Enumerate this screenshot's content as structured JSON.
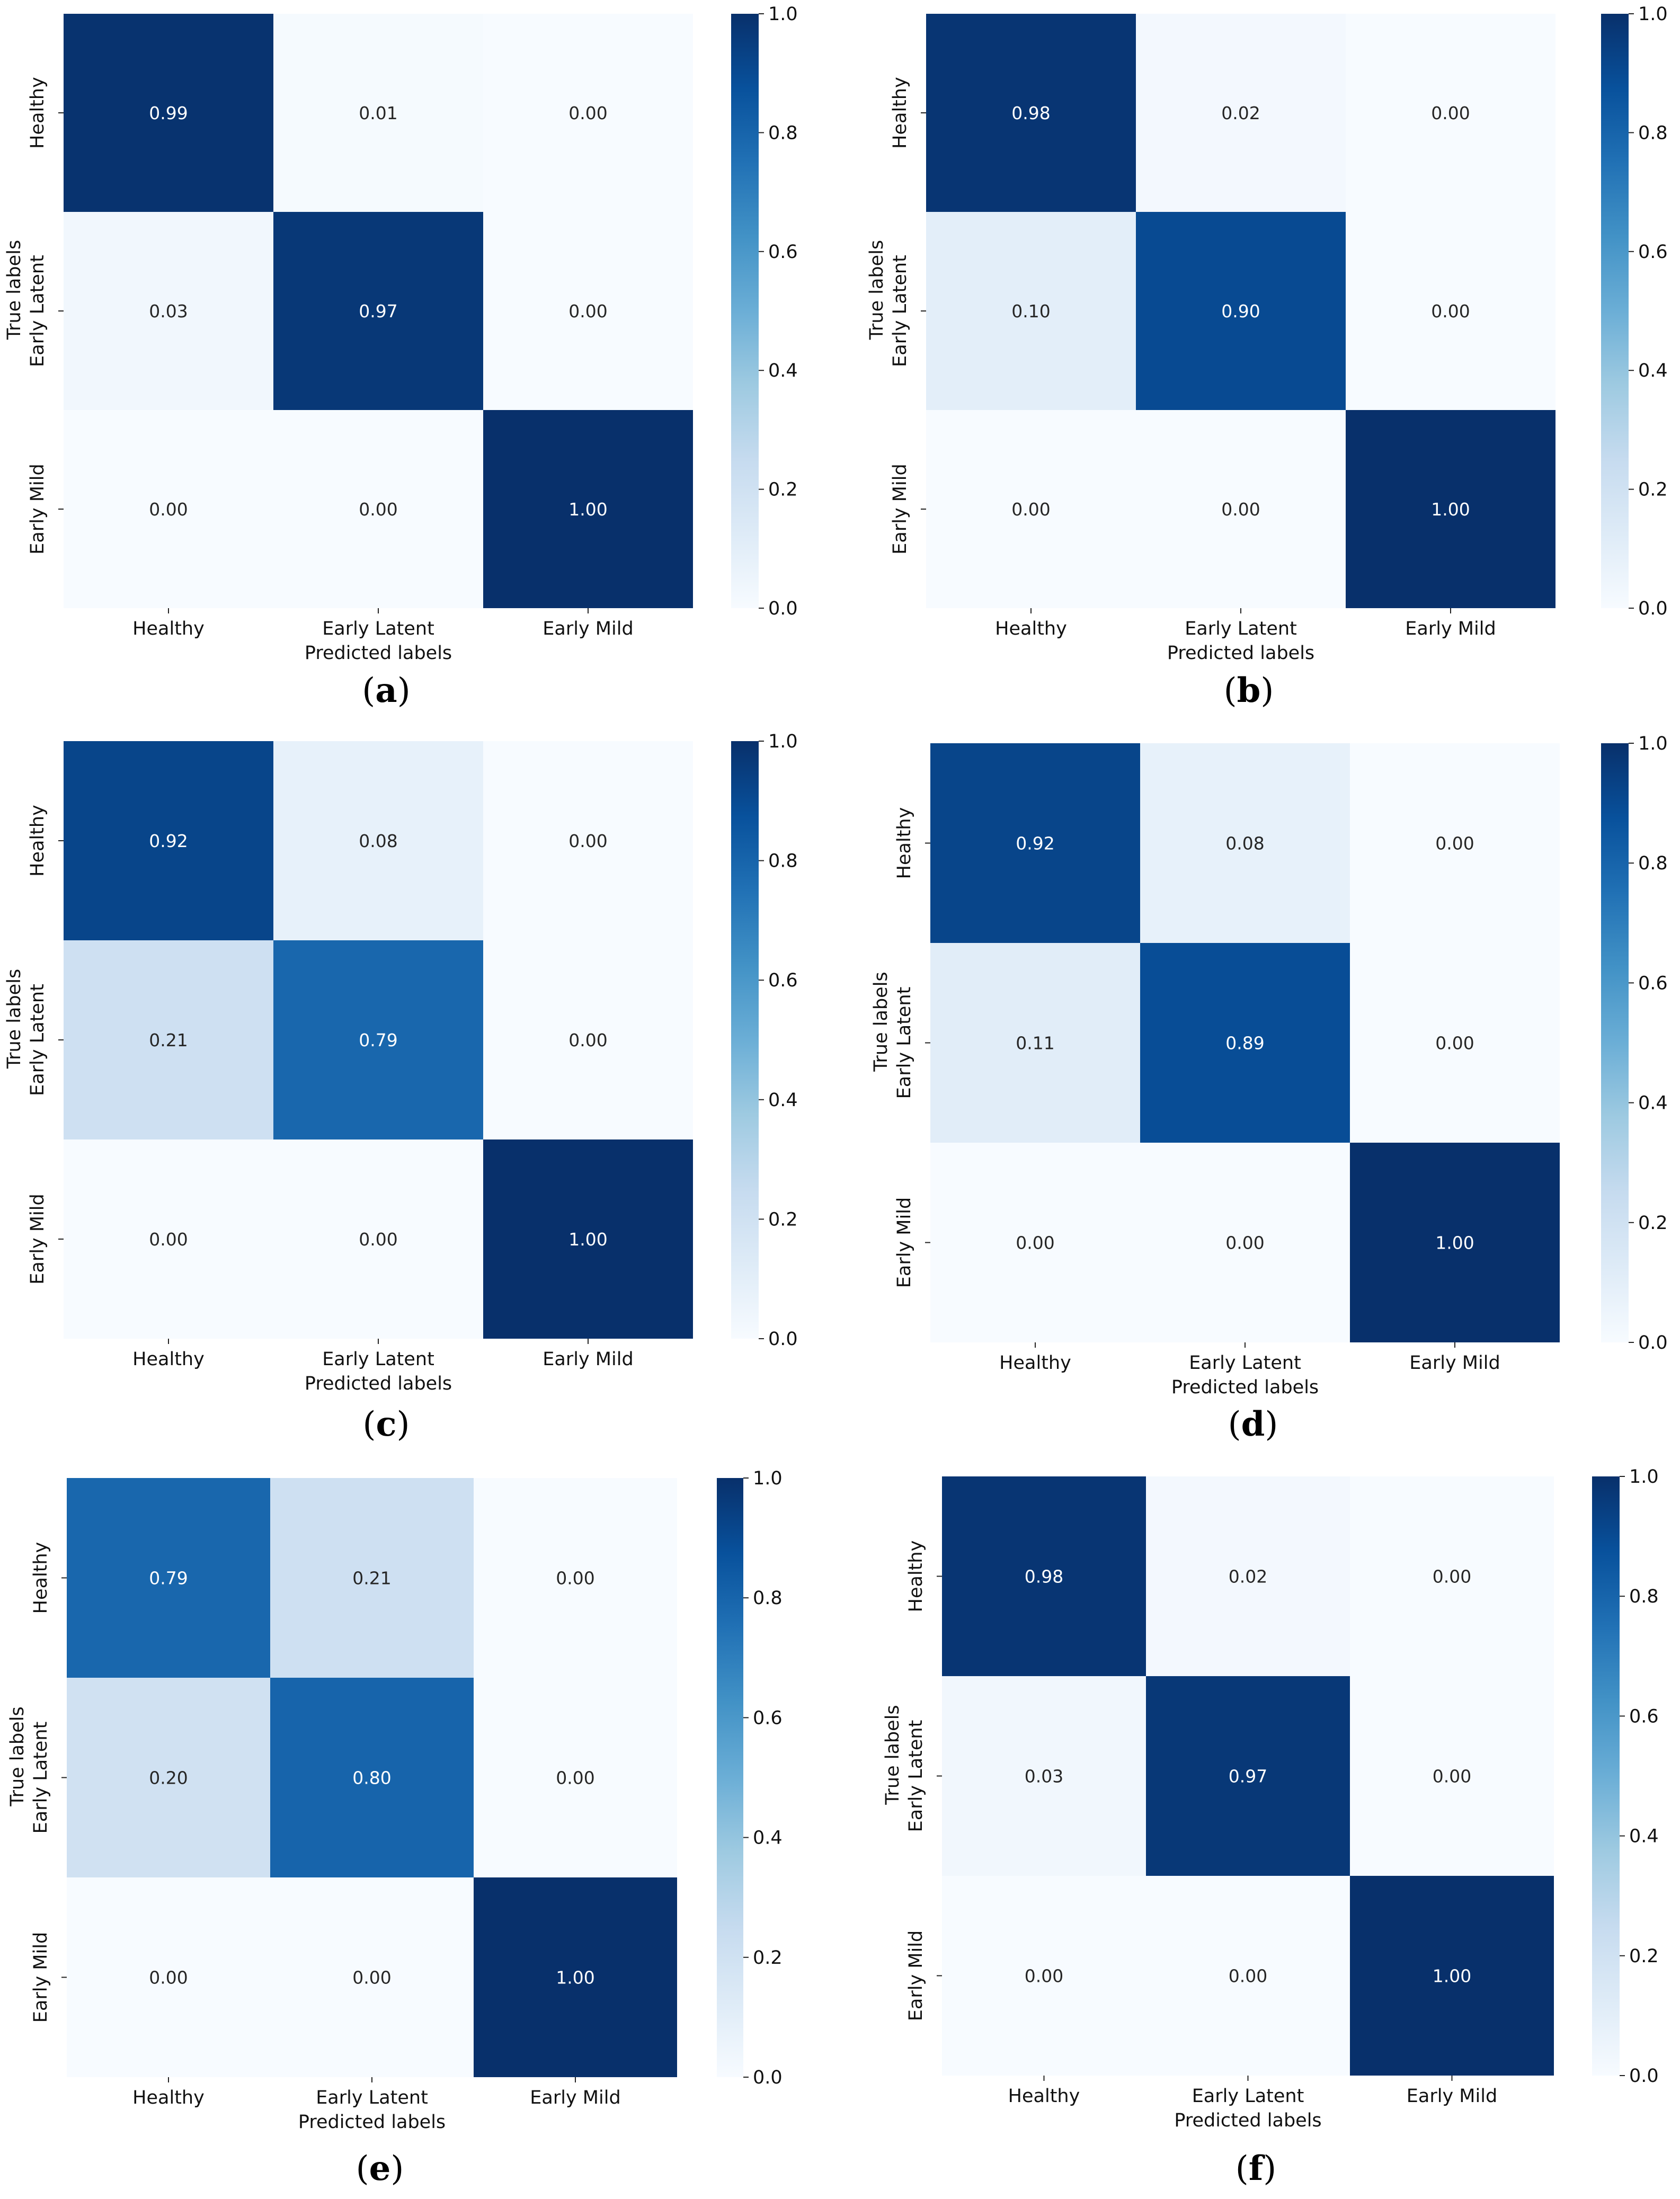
{
  "figure": {
    "colormap": [
      "#f7fbff",
      "#deebf7",
      "#c6dbef",
      "#9ecae1",
      "#6baed6",
      "#4292c6",
      "#2171b5",
      "#08519c",
      "#08306b"
    ],
    "text_light": "#ffffff",
    "text_dark": "#262626"
  },
  "chart_data": [
    {
      "type": "heatmap",
      "panel": "(a)",
      "panel_letter": "a",
      "xlabel": "Predicted labels",
      "ylabel": "True labels",
      "x_categories": [
        "Healthy",
        "Early Latent",
        "Early Mild"
      ],
      "y_categories": [
        "Healthy",
        "Early Latent",
        "Early Mild"
      ],
      "values": [
        [
          0.99,
          0.01,
          0.0
        ],
        [
          0.03,
          0.97,
          0.0
        ],
        [
          0.0,
          0.0,
          1.0
        ]
      ],
      "colorbar": {
        "min": 0.0,
        "max": 1.0,
        "ticks": [
          "0.0",
          "0.2",
          "0.4",
          "0.6",
          "0.8",
          "1.0"
        ]
      }
    },
    {
      "type": "heatmap",
      "panel": "(b)",
      "panel_letter": "b",
      "xlabel": "Predicted labels",
      "ylabel": "True labels",
      "x_categories": [
        "Healthy",
        "Early Latent",
        "Early Mild"
      ],
      "y_categories": [
        "Healthy",
        "Early Latent",
        "Early Mild"
      ],
      "values": [
        [
          0.98,
          0.02,
          0.0
        ],
        [
          0.1,
          0.9,
          0.0
        ],
        [
          0.0,
          0.0,
          1.0
        ]
      ],
      "colorbar": {
        "min": 0.0,
        "max": 1.0,
        "ticks": [
          "0.0",
          "0.2",
          "0.4",
          "0.6",
          "0.8",
          "1.0"
        ]
      }
    },
    {
      "type": "heatmap",
      "panel": "(c)",
      "panel_letter": "c",
      "xlabel": "Predicted labels",
      "ylabel": "True labels",
      "x_categories": [
        "Healthy",
        "Early Latent",
        "Early Mild"
      ],
      "y_categories": [
        "Healthy",
        "Early Latent",
        "Early Mild"
      ],
      "values": [
        [
          0.92,
          0.08,
          0.0
        ],
        [
          0.21,
          0.79,
          0.0
        ],
        [
          0.0,
          0.0,
          1.0
        ]
      ],
      "colorbar": {
        "min": 0.0,
        "max": 1.0,
        "ticks": [
          "0.0",
          "0.2",
          "0.4",
          "0.6",
          "0.8",
          "1.0"
        ]
      }
    },
    {
      "type": "heatmap",
      "panel": "(d)",
      "panel_letter": "d",
      "xlabel": "Predicted labels",
      "ylabel": "True labels",
      "x_categories": [
        "Healthy",
        "Early Latent",
        "Early Mild"
      ],
      "y_categories": [
        "Healthy",
        "Early Latent",
        "Early Mild"
      ],
      "values": [
        [
          0.92,
          0.08,
          0.0
        ],
        [
          0.11,
          0.89,
          0.0
        ],
        [
          0.0,
          0.0,
          1.0
        ]
      ],
      "colorbar": {
        "min": 0.0,
        "max": 1.0,
        "ticks": [
          "0.0",
          "0.2",
          "0.4",
          "0.6",
          "0.8",
          "1.0"
        ]
      }
    },
    {
      "type": "heatmap",
      "panel": "(e)",
      "panel_letter": "e",
      "xlabel": "Predicted labels",
      "ylabel": "True labels",
      "x_categories": [
        "Healthy",
        "Early Latent",
        "Early Mild"
      ],
      "y_categories": [
        "Healthy",
        "Early Latent",
        "Early Mild"
      ],
      "values": [
        [
          0.79,
          0.21,
          0.0
        ],
        [
          0.2,
          0.8,
          0.0
        ],
        [
          0.0,
          0.0,
          1.0
        ]
      ],
      "colorbar": {
        "min": 0.0,
        "max": 1.0,
        "ticks": [
          "0.0",
          "0.2",
          "0.4",
          "0.6",
          "0.8",
          "1.0"
        ]
      }
    },
    {
      "type": "heatmap",
      "panel": "(f)",
      "panel_letter": "f",
      "xlabel": "Predicted labels",
      "ylabel": "True labels",
      "x_categories": [
        "Healthy",
        "Early Latent",
        "Early Mild"
      ],
      "y_categories": [
        "Healthy",
        "Early Latent",
        "Early Mild"
      ],
      "values": [
        [
          0.98,
          0.02,
          0.0
        ],
        [
          0.03,
          0.97,
          0.0
        ],
        [
          0.0,
          0.0,
          1.0
        ]
      ],
      "colorbar": {
        "min": 0.0,
        "max": 1.0,
        "ticks": [
          "0.0",
          "0.2",
          "0.4",
          "0.6",
          "0.8",
          "1.0"
        ]
      }
    }
  ]
}
